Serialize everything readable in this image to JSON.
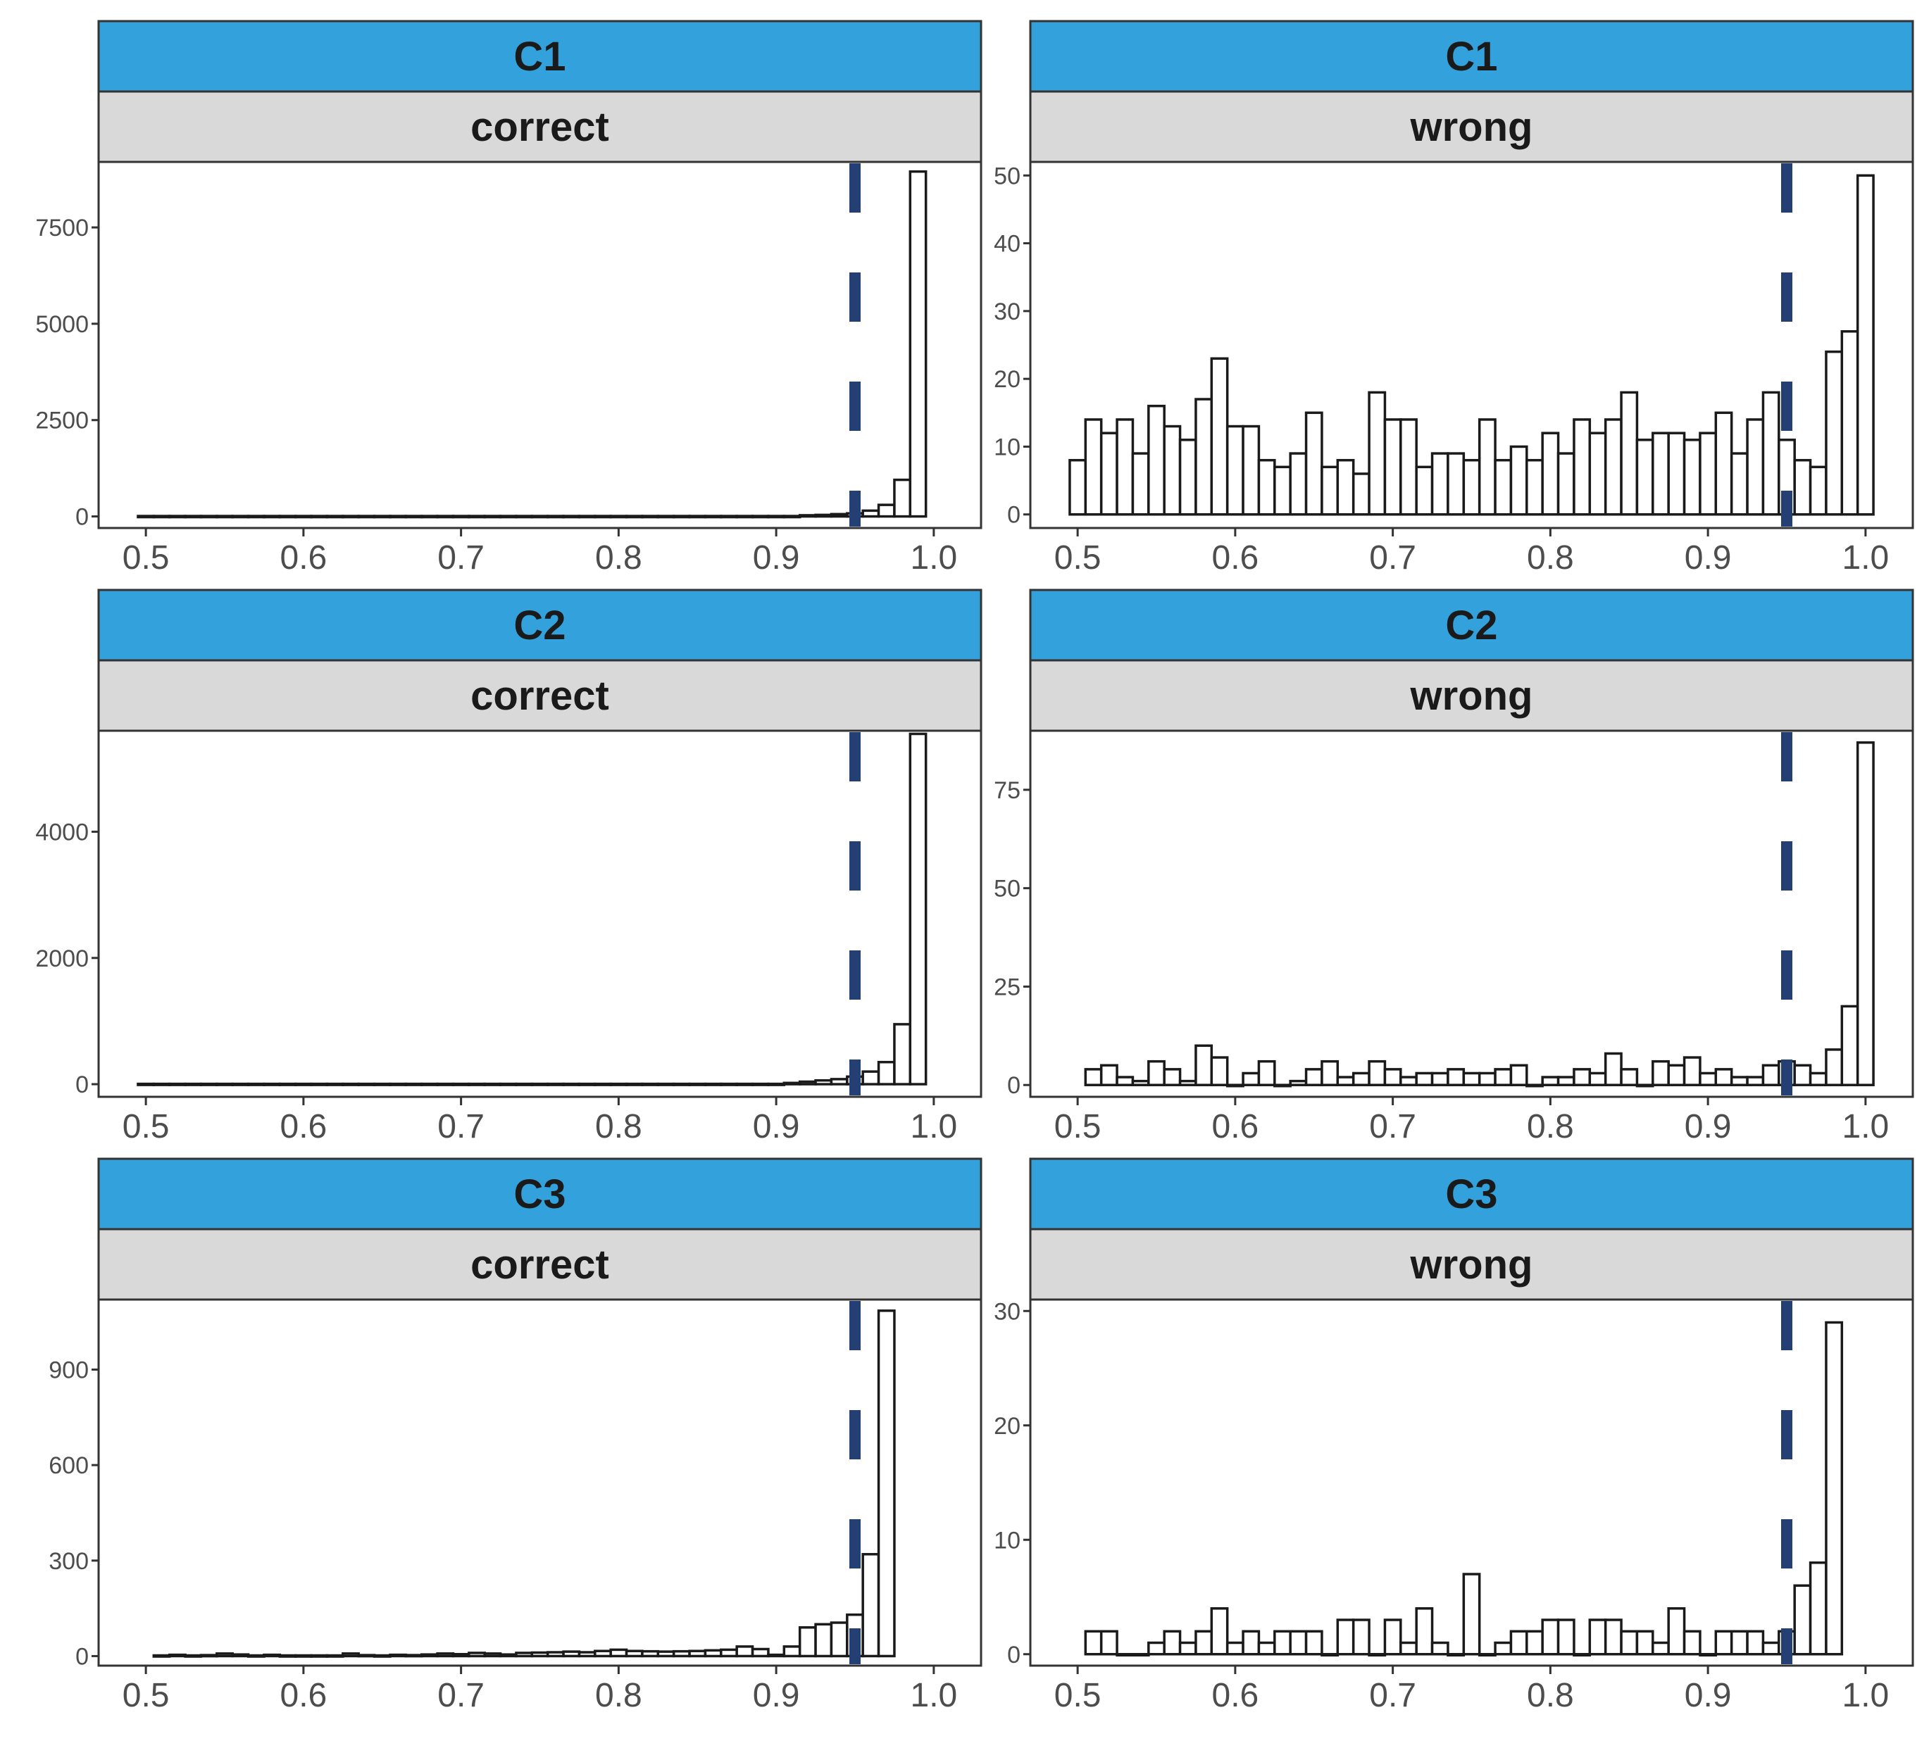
{
  "chart_data": {
    "type": "histogram-facets",
    "threshold": 0.95,
    "colors": {
      "strip_top": "#33a1dc",
      "strip_sub": "#d9d9d9",
      "bar_fill": "#ffffff",
      "bar_stroke": "#1a1a1a",
      "threshold_line": "#233f73",
      "panel_border": "#333333"
    },
    "xlim": [
      0.47,
      1.03
    ],
    "xticks": [
      {
        "value": 0.5,
        "label": "0.5"
      },
      {
        "value": 0.6,
        "label": "0.6"
      },
      {
        "value": 0.7,
        "label": "0.7"
      },
      {
        "value": 0.8,
        "label": "0.8"
      },
      {
        "value": 0.9,
        "label": "0.9"
      },
      {
        "value": 1.0,
        "label": "1.0"
      }
    ],
    "panels": [
      {
        "id": "c1-correct",
        "row": 0,
        "col": 0,
        "group": "C1",
        "outcome": "correct",
        "ylim": [
          -300,
          9200
        ],
        "yticks": [
          {
            "value": 0,
            "label": "0"
          },
          {
            "value": 2500,
            "label": "2500"
          },
          {
            "value": 5000,
            "label": "5000"
          },
          {
            "value": 7500,
            "label": "7500"
          }
        ],
        "bin_start": 0.495,
        "bin_width": 0.01,
        "counts": [
          10,
          10,
          10,
          10,
          10,
          10,
          10,
          10,
          10,
          10,
          10,
          10,
          10,
          10,
          10,
          10,
          10,
          10,
          10,
          10,
          10,
          10,
          10,
          10,
          10,
          10,
          10,
          10,
          10,
          10,
          10,
          10,
          10,
          10,
          10,
          10,
          10,
          10,
          10,
          10,
          10,
          10,
          30,
          40,
          60,
          80,
          150,
          300,
          950,
          8950
        ]
      },
      {
        "id": "c1-wrong",
        "row": 0,
        "col": 1,
        "group": "C1",
        "outcome": "wrong",
        "ylim": [
          -2,
          52
        ],
        "yticks": [
          {
            "value": 0,
            "label": "0"
          },
          {
            "value": 10,
            "label": "10"
          },
          {
            "value": 20,
            "label": "20"
          },
          {
            "value": 30,
            "label": "30"
          },
          {
            "value": 40,
            "label": "40"
          },
          {
            "value": 50,
            "label": "50"
          }
        ],
        "bin_start": 0.495,
        "bin_width": 0.01,
        "counts": [
          8,
          14,
          12,
          14,
          9,
          16,
          13,
          11,
          17,
          23,
          13,
          13,
          8,
          7,
          9,
          15,
          7,
          8,
          6,
          18,
          14,
          14,
          7,
          9,
          9,
          8,
          14,
          8,
          10,
          8,
          12,
          9,
          14,
          12,
          14,
          18,
          11,
          12,
          12,
          11,
          12,
          15,
          9,
          14,
          18,
          11,
          8,
          7,
          24,
          27,
          50
        ]
      },
      {
        "id": "c2-correct",
        "row": 1,
        "col": 0,
        "group": "C2",
        "outcome": "correct",
        "ylim": [
          -200,
          5600
        ],
        "yticks": [
          {
            "value": 0,
            "label": "0"
          },
          {
            "value": 2000,
            "label": "2000"
          },
          {
            "value": 4000,
            "label": "4000"
          }
        ],
        "bin_start": 0.495,
        "bin_width": 0.01,
        "counts": [
          5,
          5,
          5,
          5,
          5,
          5,
          5,
          5,
          5,
          5,
          5,
          5,
          5,
          5,
          5,
          5,
          5,
          5,
          5,
          5,
          5,
          5,
          5,
          5,
          5,
          5,
          5,
          5,
          5,
          5,
          5,
          5,
          5,
          5,
          5,
          5,
          5,
          5,
          5,
          5,
          5,
          20,
          40,
          60,
          80,
          120,
          200,
          350,
          950,
          5550
        ]
      },
      {
        "id": "c2-wrong",
        "row": 1,
        "col": 1,
        "group": "C2",
        "outcome": "wrong",
        "ylim": [
          -3,
          90
        ],
        "yticks": [
          {
            "value": 0,
            "label": "0"
          },
          {
            "value": 25,
            "label": "25"
          },
          {
            "value": 50,
            "label": "50"
          },
          {
            "value": 75,
            "label": "75"
          }
        ],
        "bin_start": 0.505,
        "bin_width": 0.01,
        "counts": [
          4,
          5,
          2,
          1,
          6,
          4,
          1,
          10,
          7,
          0,
          3,
          6,
          0,
          1,
          4,
          6,
          2,
          3,
          6,
          4,
          2,
          3,
          3,
          4,
          3,
          3,
          4,
          5,
          0,
          2,
          2,
          4,
          3,
          8,
          4,
          0,
          6,
          5,
          7,
          3,
          4,
          2,
          2,
          5,
          6,
          5,
          3,
          9,
          20,
          87
        ]
      },
      {
        "id": "c3-correct",
        "row": 2,
        "col": 0,
        "group": "C3",
        "outcome": "correct",
        "ylim": [
          -30,
          1120
        ],
        "yticks": [
          {
            "value": 0,
            "label": "0"
          },
          {
            "value": 300,
            "label": "300"
          },
          {
            "value": 600,
            "label": "600"
          },
          {
            "value": 900,
            "label": "900"
          }
        ],
        "bin_start": 0.505,
        "bin_width": 0.01,
        "counts": [
          2,
          4,
          2,
          3,
          8,
          5,
          2,
          4,
          2,
          2,
          2,
          2,
          8,
          3,
          2,
          4,
          3,
          5,
          8,
          6,
          10,
          8,
          5,
          10,
          11,
          12,
          14,
          12,
          16,
          20,
          16,
          15,
          14,
          15,
          16,
          18,
          20,
          30,
          22,
          4,
          30,
          90,
          100,
          105,
          130,
          320,
          1085
        ]
      },
      {
        "id": "c3-wrong",
        "row": 2,
        "col": 1,
        "group": "C3",
        "outcome": "wrong",
        "ylim": [
          -1,
          31
        ],
        "yticks": [
          {
            "value": 0,
            "label": "0"
          },
          {
            "value": 10,
            "label": "10"
          },
          {
            "value": 20,
            "label": "20"
          },
          {
            "value": 30,
            "label": "30"
          }
        ],
        "bin_start": 0.505,
        "bin_width": 0.01,
        "counts": [
          2,
          2,
          0,
          0,
          1,
          2,
          1,
          2,
          4,
          1,
          2,
          1,
          2,
          2,
          2,
          0,
          3,
          3,
          0,
          3,
          1,
          4,
          1,
          0,
          7,
          0,
          1,
          2,
          2,
          3,
          3,
          0,
          3,
          3,
          2,
          2,
          1,
          4,
          2,
          0,
          2,
          2,
          2,
          1,
          2,
          6,
          8,
          29
        ]
      }
    ]
  }
}
